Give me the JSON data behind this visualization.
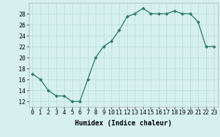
{
  "x": [
    0,
    1,
    2,
    3,
    4,
    5,
    6,
    7,
    8,
    9,
    10,
    11,
    12,
    13,
    14,
    15,
    16,
    17,
    18,
    19,
    20,
    21,
    22,
    23
  ],
  "y": [
    17,
    16,
    14,
    13,
    13,
    12,
    12,
    16,
    20,
    22,
    23,
    25,
    27.5,
    28,
    29,
    28,
    28,
    28,
    28.5,
    28,
    28,
    26.5,
    22,
    22
  ],
  "line_color": "#2e7d6e",
  "marker": "D",
  "marker_size": 2.2,
  "bg_color": "#d6f0f0",
  "grid_color": "#b8dada",
  "xlabel": "Humidex (Indice chaleur)",
  "xlim": [
    -0.5,
    23.5
  ],
  "ylim": [
    11,
    30
  ],
  "yticks": [
    12,
    14,
    16,
    18,
    20,
    22,
    24,
    26,
    28
  ],
  "xticks": [
    0,
    1,
    2,
    3,
    4,
    5,
    6,
    7,
    8,
    9,
    10,
    11,
    12,
    13,
    14,
    15,
    16,
    17,
    18,
    19,
    20,
    21,
    22,
    23
  ],
  "xlabel_fontsize": 7,
  "tick_fontsize": 6,
  "line_width": 1.0
}
